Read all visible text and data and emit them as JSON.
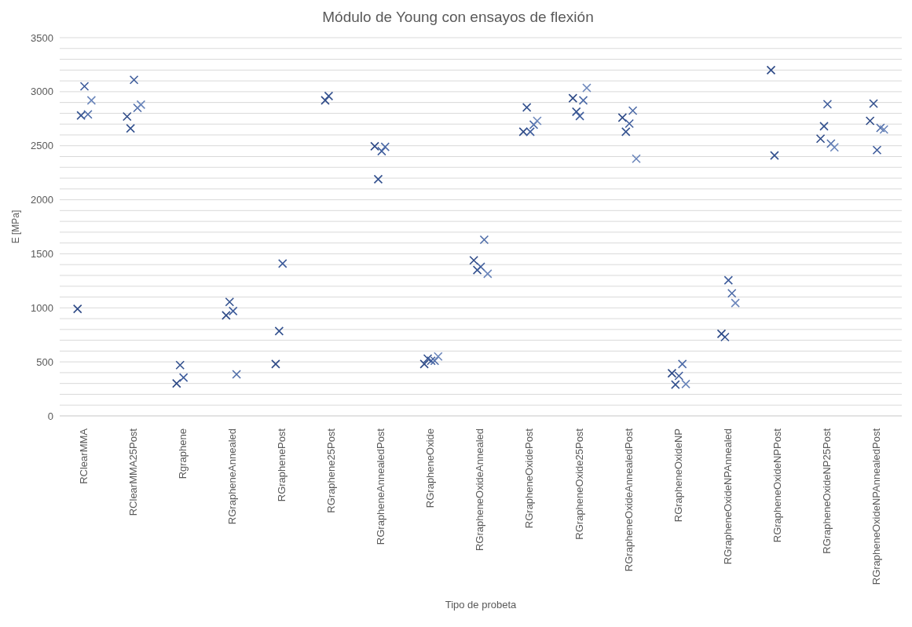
{
  "chart_data": {
    "type": "scatter",
    "title": "Módulo de Young con ensayos de flexión",
    "xlabel": "Tipo de probeta",
    "ylabel": "E [MPa]",
    "categories": [
      "RClearMMA",
      "RClearMMA25Post",
      "Rgraphene",
      "RGrapheneAnnealed",
      "RGraphenePost",
      "RGraphene25Post",
      "RGrapheneAnnealedPost",
      "RGrapheneOxide",
      "RGrapheneOxideAnnealed",
      "RGrapheneOxidePost",
      "RGrapheneOxide25Post",
      "RGrapheneOxideAnnealedPost",
      "RGrapheneOxideNP",
      "RGrapheneOxideNPAnnealed",
      "RGrapheneOxideNPPost",
      "RGrapheneOxideNP25Post",
      "RGrapheneOxideNPAnnealedPost"
    ],
    "series": [
      {
        "color": "#2e4a87",
        "values": [
          990,
          2770,
          300,
          930,
          480,
          2920,
          2495,
          480,
          1440,
          2630,
          2940,
          2760,
          395,
          760,
          3200,
          2565,
          2730
        ]
      },
      {
        "color": "#34528f",
        "values": [
          2780,
          2660,
          470,
          1055,
          785,
          2960,
          2190,
          530,
          1350,
          2855,
          2815,
          2630,
          290,
          730,
          2410,
          2680,
          2890
        ]
      },
      {
        "color": "#3f5d9c",
        "values": [
          3050,
          3110,
          355,
          970,
          1410,
          null,
          2450,
          510,
          1380,
          2630,
          2775,
          2705,
          370,
          1255,
          null,
          2885,
          2460
        ]
      },
      {
        "color": "#4e6ca8",
        "values": [
          2790,
          2850,
          null,
          385,
          null,
          null,
          2490,
          510,
          1630,
          2695,
          2920,
          2825,
          480,
          1135,
          null,
          2520,
          2665
        ]
      },
      {
        "color": "#6b86bb",
        "values": [
          2920,
          2880,
          null,
          null,
          null,
          null,
          null,
          550,
          1315,
          2730,
          3035,
          2380,
          295,
          1045,
          null,
          2485,
          2650
        ]
      }
    ],
    "ylim": [
      0,
      3500
    ],
    "yticks": [
      0,
      {
        "value": 100,
        "label": null
      },
      {
        "value": 200,
        "label": null
      },
      {
        "value": 300,
        "label": null
      },
      {
        "value": 400,
        "label": null
      },
      500,
      {
        "value": 600,
        "label": null
      },
      {
        "value": 700,
        "label": null
      },
      {
        "value": 800,
        "label": null
      },
      {
        "value": 900,
        "label": null
      },
      1000,
      {
        "value": 1100,
        "label": null
      },
      {
        "value": 1200,
        "label": null
      },
      {
        "value": 1300,
        "label": null
      },
      {
        "value": 1400,
        "label": null
      },
      1500,
      {
        "value": 1600,
        "label": null
      },
      {
        "value": 1700,
        "label": null
      },
      {
        "value": 1800,
        "label": null
      },
      {
        "value": 1900,
        "label": null
      },
      2000,
      {
        "value": 2100,
        "label": null
      },
      {
        "value": 2200,
        "label": null
      },
      {
        "value": 2300,
        "label": null
      },
      {
        "value": 2400,
        "label": null
      },
      2500,
      {
        "value": 2600,
        "label": null
      },
      {
        "value": 2700,
        "label": null
      },
      {
        "value": 2800,
        "label": null
      },
      {
        "value": 2900,
        "label": null
      },
      3000,
      {
        "value": 3100,
        "label": null
      },
      {
        "value": 3200,
        "label": null
      },
      {
        "value": 3300,
        "label": null
      },
      {
        "value": 3400,
        "label": null
      },
      3500
    ],
    "grid": "y",
    "marker": "cross",
    "legend": false
  }
}
